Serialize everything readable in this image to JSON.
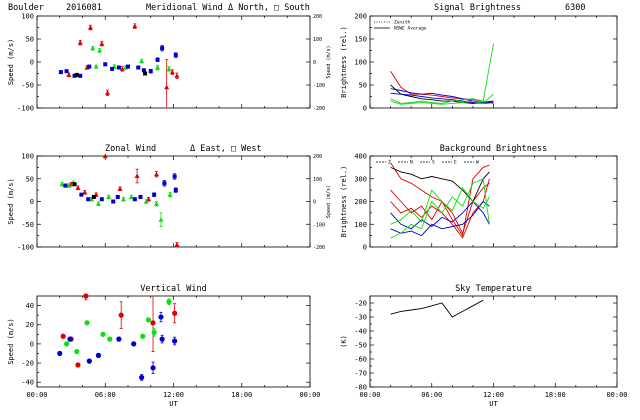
{
  "header": {
    "site": "Boulder",
    "date": "2016081"
  },
  "x_axis": {
    "label": "UT",
    "ticks": [
      "00:00",
      "06:00",
      "12:00",
      "18:00",
      "00:00"
    ],
    "range_hours": [
      0,
      24
    ]
  },
  "colors": {
    "red": "#e00000",
    "green": "#10dd10",
    "blue": "#0000cc",
    "black": "#000000"
  },
  "chart_data": [
    {
      "id": "meridional",
      "type": "scatter",
      "title": "Meridional Wind",
      "legend_text": "Δ North, □ South",
      "ylabel": "Speed (m/s)",
      "ylim": [
        -100,
        100
      ],
      "yticks": [
        100,
        50,
        0,
        -50,
        -100
      ],
      "y2label": "Speed (m/s)",
      "y2ticks": [
        "200",
        "100",
        "0",
        "-100",
        "-200"
      ],
      "series": [
        {
          "name": "red",
          "color": "red",
          "marker": "triangle",
          "points": [
            {
              "x": 2.8,
              "y": -28,
              "e": 4
            },
            {
              "x": 3.8,
              "y": 42,
              "e": 5
            },
            {
              "x": 4.7,
              "y": 75,
              "e": 5
            },
            {
              "x": 5.7,
              "y": 40,
              "e": 5
            },
            {
              "x": 6.2,
              "y": -67,
              "e": 6
            },
            {
              "x": 8.6,
              "y": 78,
              "e": 5
            },
            {
              "x": 4.4,
              "y": -12,
              "e": 4
            },
            {
              "x": 7.5,
              "y": -15,
              "e": 5
            },
            {
              "x": 11.4,
              "y": -55,
              "e": 60
            },
            {
              "x": 11.9,
              "y": -22,
              "e": 5
            },
            {
              "x": 12.3,
              "y": -30,
              "e": 6
            }
          ]
        },
        {
          "name": "green",
          "color": "green",
          "marker": "triangle",
          "points": [
            {
              "x": 4.9,
              "y": 30,
              "e": 4
            },
            {
              "x": 5.5,
              "y": 25,
              "e": 4
            },
            {
              "x": 6.8,
              "y": -10,
              "e": 4
            },
            {
              "x": 7.8,
              "y": -12,
              "e": 4
            },
            {
              "x": 9.2,
              "y": 2,
              "e": 4
            },
            {
              "x": 10.6,
              "y": -12,
              "e": 5
            },
            {
              "x": 11.6,
              "y": -15,
              "e": 5
            },
            {
              "x": 5.2,
              "y": -10,
              "e": 3
            }
          ]
        },
        {
          "name": "blue",
          "color": "blue",
          "marker": "square",
          "points": [
            {
              "x": 2.1,
              "y": -22,
              "e": 3
            },
            {
              "x": 2.6,
              "y": -20,
              "e": 3
            },
            {
              "x": 3.3,
              "y": -30,
              "e": 3
            },
            {
              "x": 3.8,
              "y": -30,
              "e": 3
            },
            {
              "x": 4.6,
              "y": -10,
              "e": 3
            },
            {
              "x": 6.0,
              "y": -5,
              "e": 3
            },
            {
              "x": 6.6,
              "y": -15,
              "e": 3
            },
            {
              "x": 7.2,
              "y": -12,
              "e": 3
            },
            {
              "x": 8.9,
              "y": -12,
              "e": 3
            },
            {
              "x": 9.4,
              "y": -18,
              "e": 3
            },
            {
              "x": 10.0,
              "y": -20,
              "e": 4
            },
            {
              "x": 10.6,
              "y": 5,
              "e": 4
            },
            {
              "x": 11.0,
              "y": 30,
              "e": 6
            },
            {
              "x": 12.2,
              "y": 15,
              "e": 5
            },
            {
              "x": 8.0,
              "y": -10,
              "e": 3
            }
          ]
        },
        {
          "name": "black",
          "color": "black",
          "marker": "square",
          "points": [
            {
              "x": 3.5,
              "y": -28,
              "e": 3
            },
            {
              "x": 9.5,
              "y": -25,
              "e": 3
            }
          ]
        }
      ]
    },
    {
      "id": "zonal",
      "type": "scatter",
      "title": "Zonal Wind",
      "legend_text": "Δ East, □ West",
      "ylabel": "Speed (m/s)",
      "ylim": [
        -100,
        100
      ],
      "yticks": [
        100,
        50,
        0,
        -50,
        -100
      ],
      "y2label": "Speed (m/s)",
      "y2ticks": [
        "200",
        "100",
        "0",
        "-100",
        "-200"
      ],
      "series": [
        {
          "name": "red",
          "color": "red",
          "marker": "triangle",
          "points": [
            {
              "x": 3.0,
              "y": 38,
              "e": 4
            },
            {
              "x": 3.6,
              "y": 30,
              "e": 4
            },
            {
              "x": 4.2,
              "y": 20,
              "e": 4
            },
            {
              "x": 5.2,
              "y": 15,
              "e": 4
            },
            {
              "x": 6.0,
              "y": 100,
              "e": 4
            },
            {
              "x": 7.3,
              "y": 28,
              "e": 4
            },
            {
              "x": 8.8,
              "y": 56,
              "e": 15
            },
            {
              "x": 10.5,
              "y": 60,
              "e": 6
            },
            {
              "x": 12.3,
              "y": -95,
              "e": 5
            },
            {
              "x": 9.8,
              "y": 5,
              "e": 4
            }
          ]
        },
        {
          "name": "green",
          "color": "green",
          "marker": "triangle",
          "points": [
            {
              "x": 2.2,
              "y": 38,
              "e": 4
            },
            {
              "x": 2.8,
              "y": 35,
              "e": 4
            },
            {
              "x": 3.2,
              "y": 40,
              "e": 5
            },
            {
              "x": 4.8,
              "y": 5,
              "e": 4
            },
            {
              "x": 5.4,
              "y": -5,
              "e": 4
            },
            {
              "x": 6.3,
              "y": 10,
              "e": 4
            },
            {
              "x": 7.6,
              "y": 5,
              "e": 4
            },
            {
              "x": 8.3,
              "y": 10,
              "e": 4
            },
            {
              "x": 9.6,
              "y": 0,
              "e": 4
            },
            {
              "x": 10.5,
              "y": -5,
              "e": 5
            },
            {
              "x": 10.9,
              "y": -40,
              "e": 15
            },
            {
              "x": 11.7,
              "y": 15,
              "e": 5
            }
          ]
        },
        {
          "name": "blue",
          "color": "blue",
          "marker": "square",
          "points": [
            {
              "x": 2.5,
              "y": 35,
              "e": 3
            },
            {
              "x": 3.9,
              "y": 15,
              "e": 3
            },
            {
              "x": 4.5,
              "y": 5,
              "e": 3
            },
            {
              "x": 5.7,
              "y": 5,
              "e": 3
            },
            {
              "x": 6.7,
              "y": 0,
              "e": 3
            },
            {
              "x": 7.1,
              "y": 10,
              "e": 3
            },
            {
              "x": 8.6,
              "y": 5,
              "e": 3
            },
            {
              "x": 9.1,
              "y": 10,
              "e": 3
            },
            {
              "x": 10.3,
              "y": 15,
              "e": 4
            },
            {
              "x": 11.2,
              "y": 40,
              "e": 6
            },
            {
              "x": 12.1,
              "y": 55,
              "e": 6
            },
            {
              "x": 12.2,
              "y": 25,
              "e": 5
            }
          ]
        },
        {
          "name": "black",
          "color": "black",
          "marker": "square",
          "points": [
            {
              "x": 3.3,
              "y": 38,
              "e": 3
            },
            {
              "x": 5.0,
              "y": 10,
              "e": 3
            }
          ]
        }
      ]
    },
    {
      "id": "vertical",
      "type": "scatter",
      "title": "Vertical Wind",
      "ylabel": "Speed (m/s)",
      "ylim": [
        -45,
        50
      ],
      "yticks": [
        40,
        20,
        0,
        -20,
        -40
      ],
      "series": [
        {
          "name": "red",
          "color": "red",
          "marker": "circle",
          "points": [
            {
              "x": 2.3,
              "y": 8,
              "e": 2
            },
            {
              "x": 3.6,
              "y": -22,
              "e": 2
            },
            {
              "x": 4.3,
              "y": 50,
              "e": 4
            },
            {
              "x": 7.4,
              "y": 30,
              "e": 14
            },
            {
              "x": 10.2,
              "y": 22,
              "e": 30
            },
            {
              "x": 12.1,
              "y": 32,
              "e": 10
            },
            {
              "x": 3.0,
              "y": 5,
              "e": 2
            }
          ]
        },
        {
          "name": "green",
          "color": "green",
          "marker": "circle",
          "points": [
            {
              "x": 2.6,
              "y": 0,
              "e": 2
            },
            {
              "x": 3.5,
              "y": -8,
              "e": 2
            },
            {
              "x": 4.4,
              "y": 22,
              "e": 2
            },
            {
              "x": 5.8,
              "y": 10,
              "e": 2
            },
            {
              "x": 6.4,
              "y": 5,
              "e": 2
            },
            {
              "x": 9.3,
              "y": 8,
              "e": 2
            },
            {
              "x": 9.8,
              "y": 25,
              "e": 2
            },
            {
              "x": 11.6,
              "y": 44,
              "e": 3
            },
            {
              "x": 10.3,
              "y": 12,
              "e": 4
            }
          ]
        },
        {
          "name": "blue",
          "color": "blue",
          "marker": "circle",
          "points": [
            {
              "x": 2.0,
              "y": -10,
              "e": 2
            },
            {
              "x": 2.9,
              "y": 5,
              "e": 2
            },
            {
              "x": 4.6,
              "y": -18,
              "e": 2
            },
            {
              "x": 5.4,
              "y": -12,
              "e": 2
            },
            {
              "x": 7.2,
              "y": 5,
              "e": 2
            },
            {
              "x": 8.5,
              "y": 0,
              "e": 2
            },
            {
              "x": 9.2,
              "y": -35,
              "e": 3
            },
            {
              "x": 10.2,
              "y": -25,
              "e": 6
            },
            {
              "x": 10.9,
              "y": 28,
              "e": 5
            },
            {
              "x": 11.0,
              "y": 5,
              "e": 4
            },
            {
              "x": 12.1,
              "y": 3,
              "e": 4
            }
          ]
        }
      ]
    },
    {
      "id": "signal",
      "type": "line",
      "title": "Signal Brightness",
      "title2": "6300",
      "ylabel": "Brightness (rel.)",
      "ylim": [
        0,
        200
      ],
      "yticks": [
        200,
        150,
        100,
        50,
        0
      ],
      "legend": [
        {
          "label": "Zenith",
          "style": "dotted"
        },
        {
          "label": "NSWE Average",
          "style": "solid"
        }
      ],
      "x": [
        2.0,
        3.0,
        4.0,
        5.0,
        6.0,
        7.0,
        8.0,
        9.0,
        10.0,
        11.0,
        12.0
      ],
      "series": [
        {
          "name": "red",
          "color": "red",
          "values": [
            80,
            45,
            30,
            30,
            28,
            25,
            22,
            20,
            18,
            15,
            10
          ]
        },
        {
          "name": "black",
          "color": "black",
          "values": [
            50,
            30,
            25,
            20,
            18,
            15,
            15,
            12,
            10,
            12,
            15
          ]
        },
        {
          "name": "blue-a",
          "color": "blue",
          "values": [
            42,
            38,
            33,
            30,
            32,
            28,
            25,
            20,
            15,
            12,
            15
          ]
        },
        {
          "name": "blue-b",
          "color": "blue",
          "values": [
            32,
            30,
            28,
            25,
            22,
            20,
            18,
            15,
            12,
            10,
            12
          ]
        },
        {
          "name": "green-a",
          "color": "green",
          "values": [
            20,
            10,
            12,
            15,
            12,
            10,
            15,
            18,
            20,
            15,
            140
          ]
        },
        {
          "name": "green-b",
          "color": "green",
          "values": [
            15,
            8,
            10,
            12,
            10,
            8,
            10,
            12,
            15,
            10,
            30
          ]
        }
      ]
    },
    {
      "id": "background",
      "type": "line",
      "title": "Background Brightness",
      "ylabel": "Brightness (rel.)",
      "ylim": [
        0,
        400
      ],
      "yticks": [
        400,
        300,
        200,
        100,
        0
      ],
      "legend_labels": [
        "Z",
        "N",
        "S",
        "E",
        "W"
      ],
      "x": [
        2.0,
        3.0,
        4.0,
        5.0,
        6.0,
        7.0,
        8.0,
        9.0,
        10.0,
        11.0,
        11.6
      ],
      "series": [
        {
          "name": "red-a",
          "color": "red",
          "values": [
            370,
            300,
            280,
            250,
            220,
            200,
            120,
            50,
            300,
            350,
            360
          ]
        },
        {
          "name": "red-b",
          "color": "red",
          "values": [
            250,
            200,
            150,
            180,
            120,
            200,
            150,
            60,
            200,
            260,
            280
          ]
        },
        {
          "name": "red-c",
          "color": "red",
          "values": [
            200,
            150,
            170,
            130,
            180,
            150,
            100,
            40,
            150,
            200,
            300
          ]
        },
        {
          "name": "black-a",
          "color": "black",
          "values": [
            350,
            330,
            320,
            300,
            310,
            300,
            290,
            250,
            200,
            300,
            330
          ]
        },
        {
          "name": "blue-a",
          "color": "blue",
          "values": [
            150,
            100,
            80,
            120,
            90,
            130,
            110,
            150,
            200,
            150,
            100
          ]
        },
        {
          "name": "blue-b",
          "color": "blue",
          "values": [
            80,
            60,
            70,
            50,
            100,
            80,
            90,
            100,
            140,
            200,
            180
          ]
        },
        {
          "name": "green-a",
          "color": "green",
          "values": [
            40,
            60,
            100,
            80,
            200,
            150,
            220,
            180,
            280,
            300,
            100
          ]
        },
        {
          "name": "green-b",
          "color": "green",
          "values": [
            100,
            120,
            160,
            110,
            250,
            200,
            160,
            260,
            200,
            170,
            220
          ]
        }
      ]
    },
    {
      "id": "sky",
      "type": "line",
      "title": "Sky Temperature",
      "ylabel": "(K)",
      "ylim": [
        -80,
        -15
      ],
      "yticks": [
        -20,
        -30,
        -40,
        -50,
        -60,
        -70,
        -80
      ],
      "x": [
        2.0,
        3.0,
        4.0,
        5.0,
        6.0,
        7.0,
        8.0,
        9.0,
        10.0,
        11.0
      ],
      "series": [
        {
          "name": "temp",
          "color": "black",
          "values": [
            -28,
            -26,
            -25,
            -24,
            -22,
            -20,
            -30,
            -26,
            -22,
            -18
          ]
        }
      ]
    }
  ]
}
